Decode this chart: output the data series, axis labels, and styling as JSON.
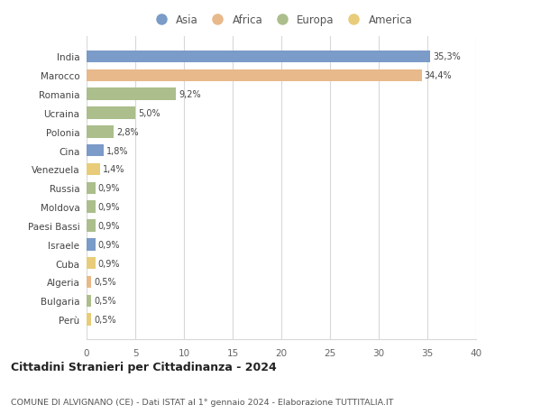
{
  "countries": [
    "India",
    "Marocco",
    "Romania",
    "Ucraina",
    "Polonia",
    "Cina",
    "Venezuela",
    "Russia",
    "Moldova",
    "Paesi Bassi",
    "Israele",
    "Cuba",
    "Algeria",
    "Bulgaria",
    "Perù"
  ],
  "values": [
    35.3,
    34.4,
    9.2,
    5.0,
    2.8,
    1.8,
    1.4,
    0.9,
    0.9,
    0.9,
    0.9,
    0.9,
    0.5,
    0.5,
    0.5
  ],
  "labels": [
    "35,3%",
    "34,4%",
    "9,2%",
    "5,0%",
    "2,8%",
    "1,8%",
    "1,4%",
    "0,9%",
    "0,9%",
    "0,9%",
    "0,9%",
    "0,9%",
    "0,5%",
    "0,5%",
    "0,5%"
  ],
  "colors": [
    "#7B9BC8",
    "#E8B98A",
    "#ABBE8C",
    "#ABBE8C",
    "#ABBE8C",
    "#7B9BC8",
    "#E8CC7A",
    "#ABBE8C",
    "#ABBE8C",
    "#ABBE8C",
    "#7B9BC8",
    "#E8CC7A",
    "#E8B98A",
    "#ABBE8C",
    "#E8CC7A"
  ],
  "legend_labels": [
    "Asia",
    "Africa",
    "Europa",
    "America"
  ],
  "legend_colors": [
    "#7B9BC8",
    "#E8B98A",
    "#ABBE8C",
    "#E8CC7A"
  ],
  "title": "Cittadini Stranieri per Cittadinanza - 2024",
  "subtitle": "COMUNE DI ALVIGNANO (CE) - Dati ISTAT al 1° gennaio 2024 - Elaborazione TUTTITALIA.IT",
  "xlim": [
    0,
    40
  ],
  "xticks": [
    0,
    5,
    10,
    15,
    20,
    25,
    30,
    35,
    40
  ],
  "background_color": "#ffffff",
  "grid_color": "#d8d8d8",
  "bar_height": 0.65
}
